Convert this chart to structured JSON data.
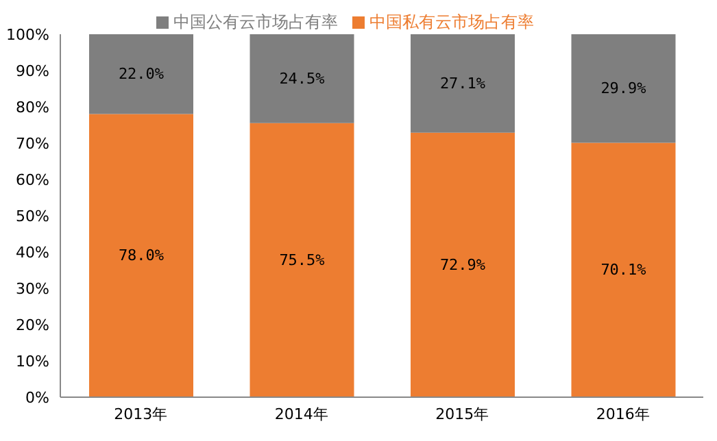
{
  "chart_data": {
    "type": "bar",
    "stacked": true,
    "categories": [
      "2013年",
      "2014年",
      "2015年",
      "2016年"
    ],
    "series": [
      {
        "name": "中国私有云市场占有率",
        "color": "#ed7d31",
        "values": [
          78.0,
          75.5,
          72.9,
          70.1
        ],
        "value_labels": [
          "78.0%",
          "75.5%",
          "72.9%",
          "70.1%"
        ]
      },
      {
        "name": "中国公有云市场占有率",
        "color": "#7f7f7f",
        "values": [
          22.0,
          24.5,
          27.1,
          29.9
        ],
        "value_labels": [
          "22.0%",
          "24.5%",
          "27.1%",
          "29.9%"
        ]
      }
    ],
    "ylim": [
      0,
      100
    ],
    "yticks": [
      {
        "value": 0,
        "label": "0%"
      },
      {
        "value": 10,
        "label": "10%"
      },
      {
        "value": 20,
        "label": "20%"
      },
      {
        "value": 30,
        "label": "30%"
      },
      {
        "value": 40,
        "label": "40%"
      },
      {
        "value": 50,
        "label": "50%"
      },
      {
        "value": 60,
        "label": "60%"
      },
      {
        "value": 70,
        "label": "70%"
      },
      {
        "value": 80,
        "label": "80%"
      },
      {
        "value": 90,
        "label": "90%"
      },
      {
        "value": 100,
        "label": "100%"
      }
    ],
    "grid": false,
    "legend": "top"
  }
}
